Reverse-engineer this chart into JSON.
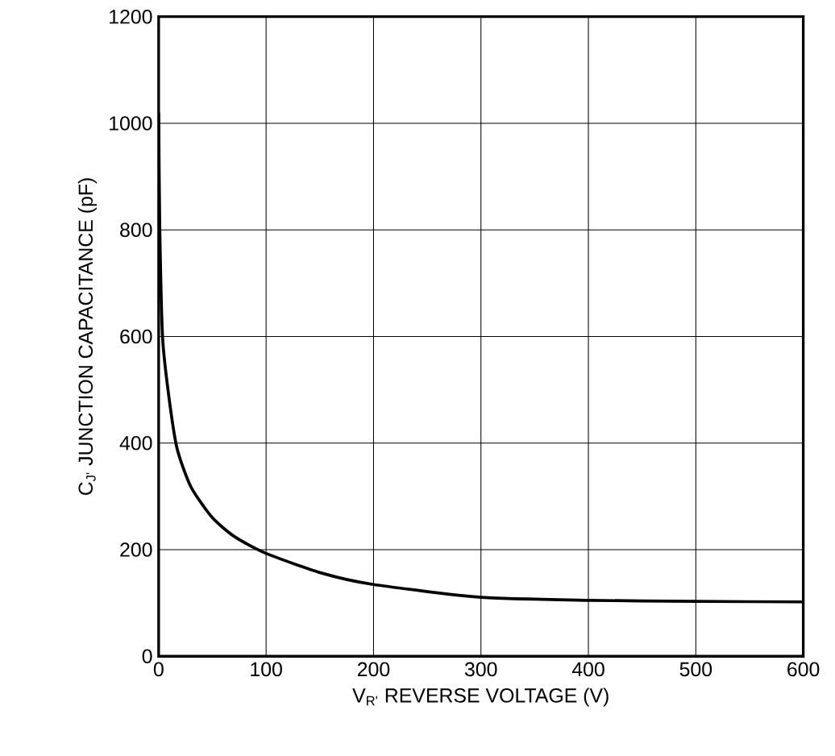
{
  "chart_data": {
    "type": "line",
    "xlabel": "V$_{R'}$ REVERSE VOLTAGE (V)",
    "ylabel": "C$_{J'}$ JUNCTION CAPACITANCE (pF)",
    "x": [
      0,
      1,
      3.6,
      9,
      17,
      30,
      50,
      71,
      100,
      152,
      199,
      298,
      400,
      500,
      600
    ],
    "series": [
      {
        "color": "#000000",
        "values": [
          1020,
          807,
          600,
          495,
          391,
          318,
          260,
          224,
          193,
          156,
          135,
          111,
          105,
          103,
          102
        ]
      }
    ],
    "xlim": [
      0,
      600
    ],
    "xticks": [
      0,
      100,
      200,
      300,
      400,
      500,
      600
    ],
    "ylim": [
      0,
      1200
    ],
    "yticks": [
      0,
      200,
      400,
      600,
      800,
      1000,
      1200
    ],
    "grid": true,
    "marker": "none",
    "line_style": "solid"
  }
}
